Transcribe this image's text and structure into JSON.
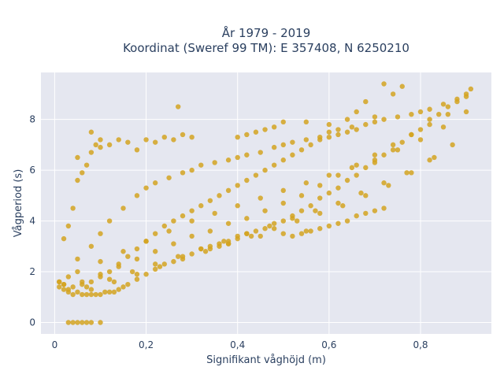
{
  "chart_data": {
    "type": "scatter",
    "title_line1": "År 1979 - 2019",
    "title_line2": "Koordinat (Sweref 99 TM): E 357408, N 6250210",
    "xlabel": "Signifikant våghöjd (m)",
    "ylabel": "Vågperiod (s)",
    "xlim": [
      -0.03,
      0.955
    ],
    "ylim": [
      -0.45,
      9.85
    ],
    "xticks": [
      0,
      0.2,
      0.4,
      0.6,
      0.8
    ],
    "xtick_labels": [
      "0",
      "0,2",
      "0,4",
      "0,6",
      "0,8"
    ],
    "yticks": [
      0,
      2,
      4,
      6,
      8
    ],
    "ytick_labels": [
      "0",
      "2",
      "4",
      "6",
      "8"
    ],
    "grid": true,
    "legend": "none",
    "marker_color": "#d4a321",
    "plot_bg": "#e5e7f0",
    "grid_color": "#ffffff",
    "series": [
      {
        "values_x": [
          0.01,
          0.01,
          0.02,
          0.02,
          0.03,
          0.03,
          0.03,
          0.04,
          0.04,
          0.05,
          0.05,
          0.06,
          0.06,
          0.07,
          0.07,
          0.08,
          0.08,
          0.09,
          0.1,
          0.1,
          0.11,
          0.12,
          0.13,
          0.14,
          0.15,
          0.16,
          0.18,
          0.2,
          0.22,
          0.24,
          0.26,
          0.28,
          0.3,
          0.32,
          0.34,
          0.36,
          0.38,
          0.4,
          0.42,
          0.44,
          0.46,
          0.48,
          0.5,
          0.52,
          0.54,
          0.56,
          0.58,
          0.6,
          0.62,
          0.64,
          0.66,
          0.68,
          0.7,
          0.72,
          0.74,
          0.76,
          0.78,
          0.8,
          0.82,
          0.84,
          0.86,
          0.88,
          0.9,
          0.91,
          0.02,
          0.03,
          0.04,
          0.05,
          0.06,
          0.07,
          0.08,
          0.09,
          0.1,
          0.05,
          0.08,
          0.1,
          0.12,
          0.14,
          0.16,
          0.18,
          0.2,
          0.22,
          0.24,
          0.26,
          0.28,
          0.3,
          0.05,
          0.08,
          0.1,
          0.12,
          0.15,
          0.18,
          0.2,
          0.22,
          0.25,
          0.28,
          0.3,
          0.32,
          0.35,
          0.38,
          0.4,
          0.42,
          0.45,
          0.48,
          0.5,
          0.52,
          0.55,
          0.58,
          0.6,
          0.62,
          0.65,
          0.68,
          0.7,
          0.72,
          0.75,
          0.78,
          0.8,
          0.82,
          0.85,
          0.88,
          0.9,
          0.05,
          0.1,
          0.15,
          0.2,
          0.25,
          0.3,
          0.35,
          0.4,
          0.45,
          0.5,
          0.55,
          0.6,
          0.65,
          0.7,
          0.75,
          0.8,
          0.85,
          0.9,
          0.06,
          0.1,
          0.14,
          0.18,
          0.22,
          0.26,
          0.3,
          0.34,
          0.38,
          0.42,
          0.46,
          0.5,
          0.54,
          0.58,
          0.62,
          0.66,
          0.7,
          0.74,
          0.78,
          0.82,
          0.86,
          0.07,
          0.12,
          0.17,
          0.22,
          0.27,
          0.32,
          0.37,
          0.42,
          0.47,
          0.52,
          0.57,
          0.62,
          0.67,
          0.72,
          0.77,
          0.82,
          0.87,
          0.08,
          0.13,
          0.18,
          0.23,
          0.28,
          0.33,
          0.38,
          0.43,
          0.48,
          0.53,
          0.58,
          0.63,
          0.68,
          0.73,
          0.78,
          0.83,
          0.27,
          0.72,
          0.74,
          0.76,
          0.68,
          0.66,
          0.64,
          0.55,
          0.5,
          0.48,
          0.46,
          0.44,
          0.42,
          0.4,
          0.7,
          0.6,
          0.34,
          0.36,
          0.38,
          0.4,
          0.45,
          0.5,
          0.55,
          0.6,
          0.62,
          0.64,
          0.66,
          0.68,
          0.7,
          0.72,
          0.58,
          0.56,
          0.54,
          0.52,
          0.02,
          0.03,
          0.01,
          0.04,
          0.06,
          0.08,
          0.1,
          0.12,
          0.14,
          0.16,
          0.18,
          0.2,
          0.22,
          0.24,
          0.26,
          0.28,
          0.3,
          0.32,
          0.34,
          0.36,
          0.38,
          0.4,
          0.42,
          0.44,
          0.46,
          0.48,
          0.5,
          0.52,
          0.54,
          0.56,
          0.58,
          0.6,
          0.62,
          0.64,
          0.66
        ],
        "values_y": [
          1.4,
          1.6,
          1.3,
          1.5,
          1.2,
          1.8,
          0,
          1.1,
          0,
          1.2,
          0,
          1.1,
          0,
          1.1,
          0,
          1.1,
          0,
          1.1,
          1.1,
          0,
          1.2,
          1.2,
          1.2,
          1.3,
          1.4,
          1.5,
          1.7,
          1.9,
          2.1,
          2.3,
          2.4,
          2.6,
          2.7,
          2.9,
          3.0,
          3.1,
          3.2,
          3.4,
          3.5,
          3.6,
          3.7,
          3.9,
          4.0,
          4.2,
          4.4,
          4.6,
          4.9,
          5.1,
          5.3,
          5.6,
          5.8,
          6.1,
          6.3,
          6.6,
          6.8,
          7.1,
          7.4,
          7.6,
          8.0,
          8.2,
          8.5,
          8.7,
          9.0,
          9.2,
          3.3,
          3.8,
          4.5,
          5.6,
          5.9,
          6.2,
          6.7,
          7.0,
          7.2,
          6.5,
          7.5,
          6.9,
          7.0,
          7.2,
          7.1,
          6.8,
          7.2,
          7.1,
          7.3,
          7.2,
          7.4,
          7.3,
          2.5,
          3.0,
          3.5,
          4.0,
          4.5,
          5.0,
          5.3,
          5.5,
          5.7,
          5.9,
          6.0,
          6.2,
          6.3,
          6.4,
          6.5,
          6.6,
          6.7,
          6.9,
          7.0,
          7.1,
          7.2,
          7.3,
          7.5,
          7.6,
          7.7,
          7.8,
          7.9,
          8.0,
          8.1,
          8.2,
          8.3,
          8.4,
          8.6,
          8.8,
          8.9,
          2.0,
          2.4,
          2.8,
          3.2,
          3.6,
          4.0,
          4.3,
          4.6,
          4.9,
          5.2,
          5.5,
          5.8,
          6.1,
          6.4,
          6.8,
          7.2,
          7.7,
          8.3,
          1.6,
          1.9,
          2.2,
          2.5,
          2.8,
          3.1,
          3.4,
          3.6,
          3.9,
          4.1,
          4.4,
          4.7,
          5.0,
          5.4,
          5.8,
          6.2,
          6.6,
          7.0,
          7.4,
          7.8,
          8.2,
          1.4,
          1.7,
          2.0,
          2.3,
          2.6,
          2.9,
          3.2,
          3.5,
          3.8,
          4.1,
          4.4,
          4.7,
          5.1,
          5.5,
          5.9,
          6.4,
          7.0,
          1.3,
          1.6,
          1.9,
          2.2,
          2.5,
          2.8,
          3.1,
          3.4,
          3.7,
          4.0,
          4.3,
          4.6,
          5.0,
          5.4,
          5.9,
          6.5,
          8.5,
          9.4,
          9.0,
          9.3,
          8.7,
          8.3,
          8.0,
          7.9,
          7.9,
          7.7,
          7.6,
          7.5,
          7.4,
          7.3,
          8.1,
          7.8,
          2.9,
          3.0,
          3.1,
          3.3,
          3.4,
          3.5,
          3.6,
          3.8,
          3.9,
          4.0,
          4.2,
          4.3,
          4.4,
          4.5,
          3.7,
          3.6,
          3.5,
          3.4,
          1.5,
          1.3,
          1.6,
          1.4,
          1.5,
          1.6,
          1.8,
          2.0,
          2.3,
          2.6,
          2.9,
          3.2,
          3.5,
          3.8,
          4.0,
          4.2,
          4.4,
          4.6,
          4.8,
          5.0,
          5.2,
          5.4,
          5.6,
          5.8,
          6.0,
          6.2,
          6.4,
          6.6,
          6.8,
          7.0,
          7.2,
          7.3,
          7.4,
          7.5,
          7.6
        ]
      }
    ]
  }
}
